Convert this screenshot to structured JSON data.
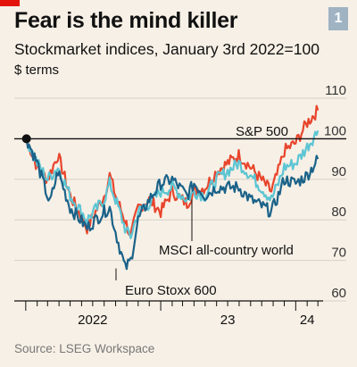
{
  "header": {
    "title": "Fear is the mind killer",
    "subtitle": "Stockmarket indices, January 3rd 2022=100",
    "unit": "$ terms",
    "badge": "1"
  },
  "footer": {
    "source": "Source: LSEG Workspace"
  },
  "colors": {
    "sp500": "#e8452c",
    "msci": "#5cc5d3",
    "stoxx": "#1a6289",
    "brand": "#e3120b"
  },
  "chart_data": {
    "type": "line",
    "title": "Fear is the mind killer",
    "subtitle": "Stockmarket indices, January 3rd 2022=100",
    "ylabel": "$ terms",
    "ylim": [
      60,
      110
    ],
    "yticks": [
      60,
      70,
      80,
      90,
      100,
      110
    ],
    "xlim": [
      "2021-12-01",
      "2024-03-15"
    ],
    "xtick_labels": [
      {
        "label": "2022",
        "date": "2022-07-01"
      },
      {
        "label": "23",
        "date": "2023-07-01"
      },
      {
        "label": "24",
        "date": "2024-02-01"
      }
    ],
    "reference_line": 100,
    "start_point": {
      "x": "2022-01-03",
      "y": 100
    },
    "series": [
      {
        "name": "S&P 500",
        "x": [
          "2022-01-03",
          "2022-02-01",
          "2022-03-01",
          "2022-03-29",
          "2022-05-01",
          "2022-06-16",
          "2022-08-01",
          "2022-08-16",
          "2022-09-01",
          "2022-09-30",
          "2022-10-12",
          "2022-11-01",
          "2022-12-01",
          "2023-01-01",
          "2023-02-01",
          "2023-03-13",
          "2023-04-01",
          "2023-05-01",
          "2023-06-01",
          "2023-07-31",
          "2023-09-01",
          "2023-10-27",
          "2023-11-15",
          "2023-12-01",
          "2024-01-01",
          "2024-02-01",
          "2024-03-01"
        ],
        "values": [
          100,
          93,
          90,
          96,
          86,
          78,
          86,
          91,
          86,
          79,
          76,
          83,
          85,
          82,
          87,
          84,
          87,
          88,
          92,
          96,
          93,
          87,
          92,
          97,
          99,
          104,
          107
        ]
      },
      {
        "name": "MSCI all-country world",
        "x": [
          "2022-01-03",
          "2022-02-01",
          "2022-03-01",
          "2022-03-29",
          "2022-05-01",
          "2022-06-16",
          "2022-08-01",
          "2022-08-16",
          "2022-09-01",
          "2022-09-30",
          "2022-10-12",
          "2022-11-01",
          "2022-12-01",
          "2023-01-01",
          "2023-02-01",
          "2023-03-13",
          "2023-04-01",
          "2023-05-01",
          "2023-06-01",
          "2023-07-31",
          "2023-09-01",
          "2023-10-27",
          "2023-11-15",
          "2023-12-01",
          "2024-01-01",
          "2024-02-01",
          "2024-03-01"
        ],
        "values": [
          100,
          94,
          90,
          93,
          86,
          80,
          85,
          89,
          85,
          77,
          76,
          82,
          84,
          87,
          88,
          85,
          87,
          86,
          90,
          94,
          91,
          85,
          89,
          93,
          94,
          98,
          102
        ]
      },
      {
        "name": "Euro Stoxx 600",
        "x": [
          "2022-01-03",
          "2022-02-01",
          "2022-03-07",
          "2022-03-29",
          "2022-05-01",
          "2022-06-16",
          "2022-08-01",
          "2022-08-16",
          "2022-09-01",
          "2022-09-27",
          "2022-10-12",
          "2022-11-01",
          "2022-12-01",
          "2023-01-01",
          "2023-02-01",
          "2023-03-13",
          "2023-04-01",
          "2023-05-01",
          "2023-06-01",
          "2023-07-31",
          "2023-09-01",
          "2023-10-27",
          "2023-11-15",
          "2023-12-01",
          "2024-01-01",
          "2024-02-01",
          "2024-03-01"
        ],
        "values": [
          100,
          94,
          84,
          92,
          83,
          78,
          82,
          83,
          77,
          68,
          70,
          80,
          85,
          89,
          90,
          86,
          89,
          86,
          88,
          88,
          85,
          82,
          86,
          90,
          89,
          91,
          95
        ]
      }
    ],
    "annotations": [
      "S&P 500",
      "MSCI all-country world",
      "Euro Stoxx 600"
    ]
  }
}
